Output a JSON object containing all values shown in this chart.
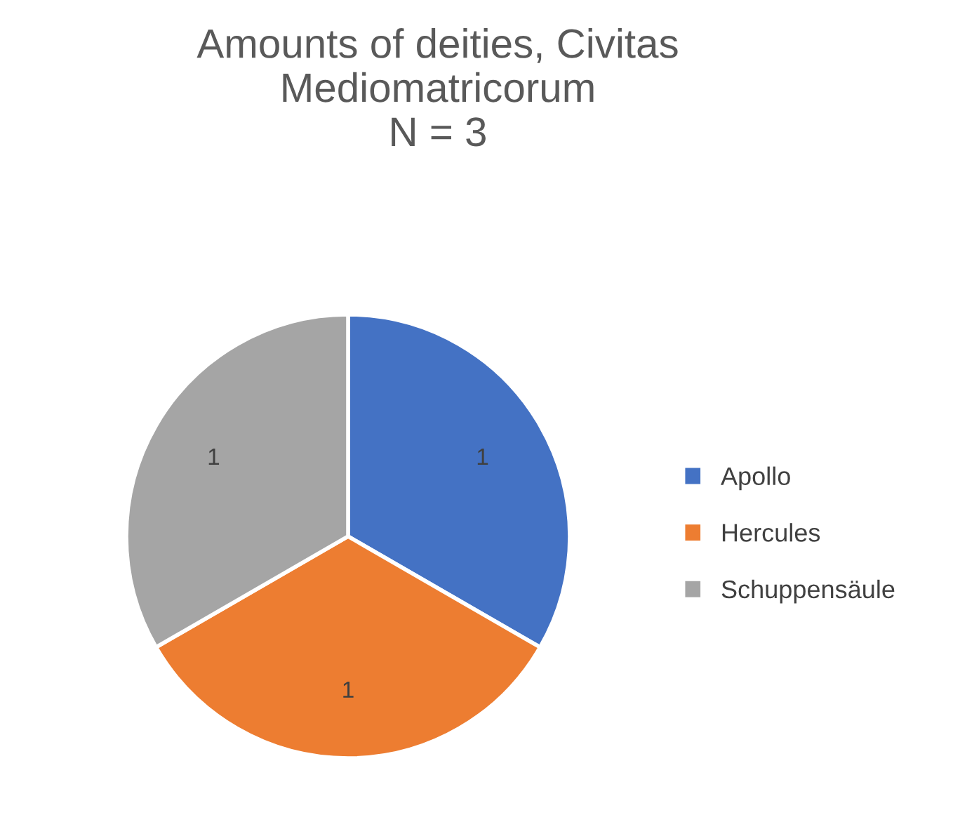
{
  "chart_data": {
    "type": "pie",
    "title": "Amounts of deities, Civitas Mediomatricorum\nN = 3",
    "categories": [
      "Apollo",
      "Hercules",
      "Schuppensäule"
    ],
    "values": [
      1,
      1,
      1
    ],
    "colors": [
      "#4472c4",
      "#ed7d31",
      "#a5a5a5"
    ],
    "data_labels": true,
    "legend": "right"
  }
}
